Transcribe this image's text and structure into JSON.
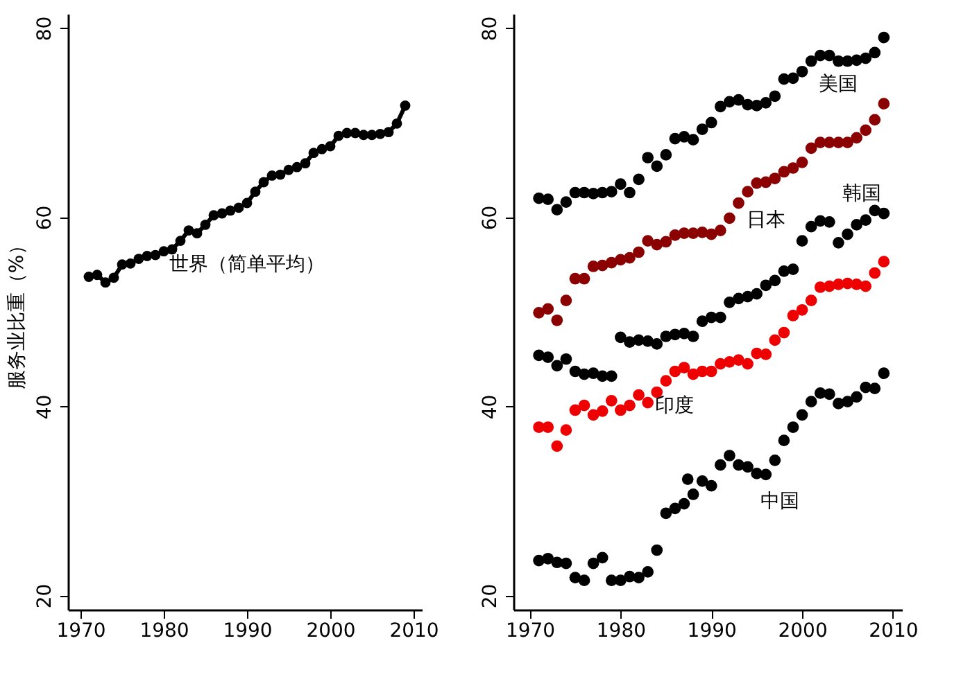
{
  "chart_data": [
    {
      "type": "line",
      "ylabel": "服务业比重（%）",
      "marker": "circle",
      "grid": false,
      "x": [
        1971,
        1972,
        1973,
        1974,
        1975,
        1976,
        1977,
        1978,
        1979,
        1980,
        1981,
        1982,
        1983,
        1984,
        1985,
        1986,
        1987,
        1988,
        1989,
        1990,
        1991,
        1992,
        1993,
        1994,
        1995,
        1996,
        1997,
        1998,
        1999,
        2000,
        2001,
        2002,
        2003,
        2004,
        2005,
        2006,
        2007,
        2008,
        2009
      ],
      "series": [
        {
          "name": "世界（简单平均）",
          "color": "#000000",
          "values": [
            53.7,
            53.9,
            53.1,
            53.6,
            55.0,
            55.1,
            55.6,
            55.9,
            56.0,
            56.4,
            56.6,
            57.5,
            58.6,
            58.3,
            59.2,
            60.2,
            60.4,
            60.7,
            61.0,
            61.5,
            62.7,
            63.7,
            64.4,
            64.5,
            65.0,
            65.3,
            65.7,
            66.8,
            67.2,
            67.5,
            68.6,
            68.9,
            68.9,
            68.7,
            68.7,
            68.8,
            69.0,
            69.9,
            71.8
          ]
        }
      ],
      "xlim": [
        1968.5,
        2011
      ],
      "xticks": [
        1970,
        1980,
        1990,
        2000,
        2010
      ],
      "ylim": [
        18.5,
        81.5
      ],
      "yticks": [
        20,
        40,
        60,
        80
      ]
    },
    {
      "type": "scatter",
      "marker": "circle",
      "grid": false,
      "x": [
        1971,
        1972,
        1973,
        1974,
        1975,
        1976,
        1977,
        1978,
        1979,
        1980,
        1981,
        1982,
        1983,
        1984,
        1985,
        1986,
        1987,
        1988,
        1989,
        1990,
        1991,
        1992,
        1993,
        1994,
        1995,
        1996,
        1997,
        1998,
        1999,
        2000,
        2001,
        2002,
        2003,
        2004,
        2005,
        2006,
        2007,
        2008,
        2009
      ],
      "series": [
        {
          "name": "美国",
          "color": "#000000",
          "values": [
            62.0,
            61.9,
            60.8,
            61.6,
            62.6,
            62.6,
            62.5,
            62.6,
            62.7,
            63.5,
            62.6,
            64.0,
            66.3,
            65.4,
            66.6,
            68.3,
            68.5,
            68.2,
            69.3,
            70.0,
            71.7,
            72.2,
            72.4,
            71.9,
            71.8,
            72.1,
            72.8,
            74.6,
            74.7,
            75.4,
            76.5,
            77.1,
            77.1,
            76.5,
            76.5,
            76.6,
            76.8,
            77.4,
            79.0
          ]
        },
        {
          "name": "日本",
          "color": "#8b0000",
          "values": [
            49.9,
            50.3,
            49.1,
            51.2,
            53.5,
            53.5,
            54.8,
            54.9,
            55.2,
            55.5,
            55.7,
            56.3,
            57.5,
            57.1,
            57.4,
            58.1,
            58.3,
            58.3,
            58.4,
            58.2,
            58.6,
            59.9,
            61.5,
            62.7,
            63.6,
            63.7,
            64.1,
            64.8,
            65.2,
            65.8,
            67.3,
            67.9,
            67.9,
            67.9,
            67.9,
            68.4,
            69.2,
            70.3,
            72.0
          ]
        },
        {
          "name": "韩国",
          "color": "#000000",
          "values": [
            45.4,
            45.2,
            44.3,
            45.0,
            43.7,
            43.4,
            43.5,
            43.2,
            43.2,
            47.3,
            46.8,
            47.0,
            46.9,
            46.6,
            47.4,
            47.6,
            47.7,
            47.4,
            49.0,
            49.4,
            49.4,
            51.0,
            51.4,
            51.6,
            51.9,
            52.8,
            53.3,
            54.3,
            54.5,
            57.5,
            59.0,
            59.6,
            59.5,
            57.3,
            58.2,
            59.2,
            59.7,
            60.7,
            60.4
          ]
        },
        {
          "name": "印度",
          "color": "#ee0000",
          "values": [
            37.8,
            37.8,
            35.8,
            37.5,
            39.6,
            40.1,
            39.1,
            39.5,
            40.6,
            39.6,
            40.1,
            41.2,
            40.4,
            41.5,
            42.7,
            43.7,
            44.1,
            43.4,
            43.7,
            43.7,
            44.5,
            44.7,
            44.9,
            44.5,
            45.6,
            45.5,
            47.0,
            47.8,
            49.6,
            50.2,
            51.2,
            52.6,
            52.7,
            52.9,
            53.0,
            52.9,
            52.7,
            54.1,
            55.3
          ]
        },
        {
          "name": "中国",
          "color": "#000000",
          "x": [
            1971,
            1972,
            1973,
            1974,
            1975,
            1976,
            1977,
            1978,
            1979,
            1980,
            1981,
            1982,
            1983,
            1984,
            1985,
            1986,
            1987,
            1987.4,
            1988,
            1989,
            1990,
            1991,
            1992,
            1993,
            1994,
            1995,
            1996,
            1997,
            1998,
            1999,
            2000,
            2001,
            2002,
            2003,
            2004,
            2005,
            2006,
            2007,
            2008,
            2009
          ],
          "values": [
            23.7,
            23.9,
            23.5,
            23.4,
            21.9,
            21.6,
            23.4,
            24.0,
            21.6,
            21.6,
            22.0,
            21.9,
            22.5,
            24.8,
            28.7,
            29.2,
            29.7,
            32.3,
            30.7,
            32.1,
            31.6,
            33.8,
            34.8,
            33.8,
            33.6,
            32.9,
            32.8,
            34.3,
            36.4,
            37.8,
            39.1,
            40.5,
            41.4,
            41.3,
            40.3,
            40.5,
            41.0,
            42.0,
            41.9,
            43.5
          ]
        }
      ],
      "xlim": [
        1968.2,
        2011
      ],
      "xticks": [
        1970,
        1980,
        1990,
        2000,
        2010
      ],
      "ylim": [
        18.5,
        81.5
      ],
      "yticks": [
        20,
        40,
        60,
        80
      ]
    }
  ]
}
